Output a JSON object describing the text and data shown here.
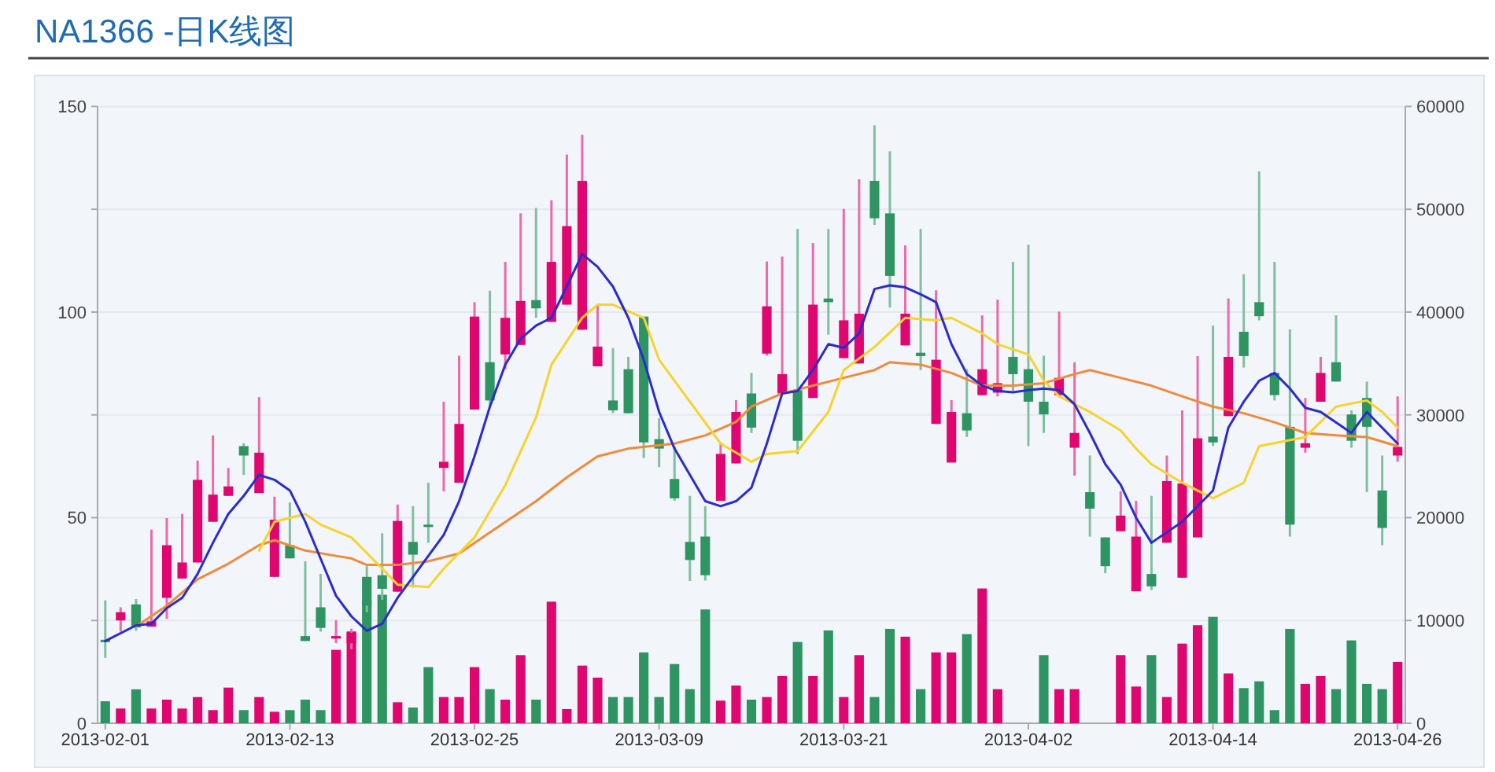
{
  "chart_data": {
    "type": "candlestick",
    "title": "NA1366 -日K线图",
    "x": [
      "2013-02-01",
      "2013-02-02",
      "2013-02-03",
      "2013-02-04",
      "2013-02-05",
      "2013-02-06",
      "2013-02-07",
      "2013-02-08",
      "2013-02-09",
      "2013-02-10",
      "2013-02-11",
      "2013-02-12",
      "2013-02-13",
      "2013-02-14",
      "2013-02-15",
      "2013-02-16",
      "2013-02-17",
      "2013-02-18",
      "2013-02-19",
      "2013-02-20",
      "2013-02-21",
      "2013-02-22",
      "2013-02-23",
      "2013-02-24",
      "2013-02-25",
      "2013-02-26",
      "2013-02-27",
      "2013-02-28",
      "2013-03-01",
      "2013-03-02",
      "2013-03-03",
      "2013-03-04",
      "2013-03-05",
      "2013-03-06",
      "2013-03-07",
      "2013-03-08",
      "2013-03-09",
      "2013-03-10",
      "2013-03-11",
      "2013-03-12",
      "2013-03-13",
      "2013-03-14",
      "2013-03-15",
      "2013-03-16",
      "2013-03-17",
      "2013-03-18",
      "2013-03-19",
      "2013-03-20",
      "2013-03-21",
      "2013-03-22",
      "2013-03-23",
      "2013-03-24",
      "2013-03-25",
      "2013-03-26",
      "2013-03-27",
      "2013-03-28",
      "2013-03-29",
      "2013-03-30",
      "2013-03-31",
      "2013-04-01",
      "2013-04-02",
      "2013-04-03",
      "2013-04-04",
      "2013-04-05",
      "2013-04-06",
      "2013-04-07",
      "2013-04-08",
      "2013-04-09",
      "2013-04-10",
      "2013-04-11",
      "2013-04-12",
      "2013-04-13",
      "2013-04-14",
      "2013-04-15",
      "2013-04-16",
      "2013-04-17",
      "2013-04-18",
      "2013-04-19",
      "2013-04-20",
      "2013-04-21",
      "2013-04-22",
      "2013-04-23",
      "2013-04-24",
      "2013-04-25",
      "2013-04-26"
    ],
    "ohlc": [
      [
        20.3,
        29.9,
        15.9,
        19.8
      ],
      [
        25,
        28.2,
        22.3,
        27
      ],
      [
        28.9,
        30.2,
        22.5,
        23.3
      ],
      [
        23.5,
        47.1,
        23.5,
        24.8
      ],
      [
        30.5,
        49.9,
        25.4,
        43.3
      ],
      [
        35.2,
        50.9,
        35.2,
        39.1
      ],
      [
        39.1,
        63.9,
        39.1,
        59.2
      ],
      [
        49,
        70,
        49,
        55.6
      ],
      [
        55.3,
        62.1,
        55.3,
        57.6
      ],
      [
        67.4,
        68.1,
        60.4,
        65.1
      ],
      [
        56,
        79.3,
        56,
        65.8
      ],
      [
        35.6,
        55.1,
        35.6,
        49.5
      ],
      [
        43.3,
        53.7,
        40.1,
        40.1
      ],
      [
        21.2,
        39.4,
        20,
        20
      ],
      [
        28.2,
        36.3,
        22.3,
        23.2
      ],
      [
        20.6,
        25.1,
        19.5,
        21.2
      ],
      [
        19.5,
        23,
        18,
        22
      ],
      [
        35.6,
        38.2,
        27,
        28.6
      ],
      [
        36,
        46.2,
        30,
        32.7
      ],
      [
        32,
        53.2,
        32,
        49.2
      ],
      [
        44.1,
        52.8,
        33,
        41
      ],
      [
        48.3,
        58.5,
        43.9,
        48
      ],
      [
        62.1,
        78.2,
        56.4,
        63.6
      ],
      [
        58.5,
        89.4,
        58.5,
        72.8
      ],
      [
        76.3,
        102.4,
        76.3,
        98.9
      ],
      [
        87.8,
        105.2,
        77,
        78.5
      ],
      [
        89.7,
        112.2,
        86.1,
        98.6
      ],
      [
        92,
        124,
        92,
        102.7
      ],
      [
        102.9,
        125.3,
        98.6,
        100.9
      ],
      [
        97.6,
        127.2,
        97.6,
        112.2
      ],
      [
        101.8,
        138.3,
        101.8,
        120.9
      ],
      [
        95.7,
        143.1,
        95.7,
        131.9
      ],
      [
        86.8,
        101.8,
        86.8,
        91.6
      ],
      [
        78.5,
        91.2,
        75.4,
        76.1
      ],
      [
        86.1,
        89.1,
        75.4,
        75.4
      ],
      [
        98.9,
        98.9,
        64.5,
        68.3
      ],
      [
        69.1,
        74.2,
        62.3,
        66.8
      ],
      [
        59.4,
        67.4,
        54.1,
        54.7
      ],
      [
        44.1,
        55.3,
        34.6,
        39.7
      ],
      [
        45.4,
        52.8,
        34.7,
        36
      ],
      [
        54.1,
        68.3,
        54.1,
        65.5
      ],
      [
        63.2,
        78.6,
        63.2,
        75.7
      ],
      [
        80.2,
        85.2,
        70.6,
        71.9
      ],
      [
        89.9,
        112.3,
        89.4,
        101.4
      ],
      [
        80.2,
        113.5,
        80.2,
        84.9
      ],
      [
        81,
        120.2,
        65.5,
        68.7
      ],
      [
        79.1,
        116.8,
        79.1,
        101.8
      ],
      [
        103.3,
        120.2,
        94.5,
        102.4
      ],
      [
        88.8,
        125.1,
        88.8,
        98
      ],
      [
        87.5,
        132.3,
        87.5,
        99.6
      ],
      [
        131.9,
        145.4,
        121.2,
        122.8
      ],
      [
        124,
        139.1,
        101.1,
        108.8
      ],
      [
        91.9,
        116.2,
        91.9,
        99.6
      ],
      [
        90.1,
        120.2,
        85.9,
        89.3
      ],
      [
        72.8,
        105.3,
        72.8,
        88.4
      ],
      [
        63.4,
        78.6,
        63.4,
        75.7
      ],
      [
        75.4,
        86.1,
        69.6,
        71.2
      ],
      [
        79.8,
        99.2,
        79.8,
        86.1
      ],
      [
        80.4,
        103,
        79.5,
        82.7
      ],
      [
        89.1,
        112.2,
        80.8,
        84.9
      ],
      [
        86.1,
        116.4,
        67.4,
        78.2
      ],
      [
        78.2,
        89.4,
        70.6,
        75.1
      ],
      [
        79.8,
        100.1,
        79.8,
        84
      ],
      [
        67,
        87.8,
        60.2,
        70.6
      ],
      [
        56.2,
        65.1,
        45.4,
        52.2
      ],
      [
        45.2,
        45.2,
        36.5,
        38.2
      ],
      [
        46.7,
        56.4,
        46.7,
        50.5
      ],
      [
        32.1,
        54.1,
        32.1,
        45.4
      ],
      [
        36.3,
        55.3,
        32.4,
        33.3
      ],
      [
        43.9,
        65.1,
        43.9,
        58.9
      ],
      [
        35.4,
        76.1,
        35.4,
        58.3
      ],
      [
        45.2,
        89.3,
        45.2,
        69.3
      ],
      [
        69.7,
        96.7,
        67.4,
        68.3
      ],
      [
        74.7,
        103.3,
        74.7,
        89.1
      ],
      [
        95.2,
        109.2,
        86.5,
        89.3
      ],
      [
        102.4,
        134.2,
        98,
        99
      ],
      [
        85.2,
        112.2,
        78.5,
        79.8
      ],
      [
        72.1,
        95.8,
        45.4,
        48.3
      ],
      [
        67,
        79.1,
        65.8,
        68.1
      ],
      [
        78.2,
        89.1,
        78.2,
        85.2
      ],
      [
        87.8,
        99.2,
        83.1,
        83.1
      ],
      [
        75.1,
        76.1,
        67,
        68.7
      ],
      [
        79.1,
        83.1,
        56.2,
        72.1
      ],
      [
        56.6,
        65.1,
        43.3,
        47.5
      ],
      [
        65.1,
        79.5,
        63.6,
        67.2
      ]
    ],
    "colors": [
      "#2e9461",
      "#e0066f",
      "#2e9461",
      "#e0066f",
      "#e0066f",
      "#e0066f",
      "#e0066f",
      "#e0066f",
      "#e0066f",
      "#2e9461",
      "#e0066f",
      "#e0066f",
      "#2e9461",
      "#2e9461",
      "#2e9461",
      "#e0066f",
      "#e0066f",
      "#2e9461",
      "#2e9461",
      "#e0066f",
      "#2e9461",
      "#2e9461",
      "#e0066f",
      "#e0066f",
      "#e0066f",
      "#2e9461",
      "#e0066f",
      "#e0066f",
      "#2e9461",
      "#e0066f",
      "#e0066f",
      "#e0066f",
      "#e0066f",
      "#2e9461",
      "#2e9461",
      "#2e9461",
      "#2e9461",
      "#2e9461",
      "#2e9461",
      "#2e9461",
      "#e0066f",
      "#e0066f",
      "#2e9461",
      "#e0066f",
      "#e0066f",
      "#2e9461",
      "#e0066f",
      "#2e9461",
      "#e0066f",
      "#e0066f",
      "#2e9461",
      "#2e9461",
      "#e0066f",
      "#2e9461",
      "#e0066f",
      "#e0066f",
      "#2e9461",
      "#e0066f",
      "#e0066f",
      "#2e9461",
      "#2e9461",
      "#2e9461",
      "#e0066f",
      "#e0066f",
      "#2e9461",
      "#2e9461",
      "#e0066f",
      "#e0066f",
      "#2e9461",
      "#e0066f",
      "#e0066f",
      "#e0066f",
      "#2e9461",
      "#e0066f",
      "#2e9461",
      "#2e9461",
      "#2e9461",
      "#2e9461",
      "#e0066f",
      "#e0066f",
      "#2e9461",
      "#2e9461",
      "#2e9461",
      "#2e9461",
      "#e0066f"
    ],
    "series": [
      {
        "type": "bar",
        "axis": "y2",
        "values": [
          2140,
          1430,
          3300,
          1430,
          2300,
          1430,
          2550,
          1280,
          3470,
          1280,
          2550,
          1120,
          1280,
          2300,
          1280,
          7140,
          8930,
          11990,
          12500,
          2040,
          1530,
          5460,
          2550,
          2550,
          5460,
          3320,
          2300,
          6630,
          2300,
          11830,
          1380,
          5610,
          4440,
          2550,
          2550,
          6890,
          2550,
          5760,
          3320,
          11070,
          2200,
          3670,
          2300,
          2550,
          4590,
          7910,
          4590,
          9030,
          2550,
          6630,
          2550,
          9180,
          8420,
          3320,
          6890,
          6890,
          8670,
          13110,
          3320,
          null,
          null,
          6630,
          3320,
          3320,
          null,
          null,
          6630,
          3570,
          6630,
          2550,
          7750,
          9540,
          10350,
          4850,
          3420,
          4080,
          1280,
          9180,
          3830,
          4590,
          3320,
          8060,
          3830,
          3320,
          5970
        ],
        "colors": [
          "#2e9461",
          "#e0066f",
          "#2e9461",
          "#e0066f",
          "#e0066f",
          "#e0066f",
          "#e0066f",
          "#e0066f",
          "#e0066f",
          "#2e9461",
          "#e0066f",
          "#e0066f",
          "#2e9461",
          "#2e9461",
          "#2e9461",
          "#e0066f",
          "#e0066f",
          "#2e9461",
          "#2e9461",
          "#e0066f",
          "#2e9461",
          "#2e9461",
          "#e0066f",
          "#e0066f",
          "#e0066f",
          "#2e9461",
          "#e0066f",
          "#e0066f",
          "#2e9461",
          "#e0066f",
          "#e0066f",
          "#e0066f",
          "#e0066f",
          "#2e9461",
          "#2e9461",
          "#2e9461",
          "#2e9461",
          "#2e9461",
          "#2e9461",
          "#2e9461",
          "#e0066f",
          "#e0066f",
          "#2e9461",
          "#e0066f",
          "#e0066f",
          "#2e9461",
          "#e0066f",
          "#2e9461",
          "#e0066f",
          "#e0066f",
          "#2e9461",
          "#2e9461",
          "#e0066f",
          "#2e9461",
          "#e0066f",
          "#e0066f",
          "#2e9461",
          "#e0066f",
          "#e0066f",
          null,
          null,
          "#2e9461",
          "#e0066f",
          "#e0066f",
          null,
          null,
          "#e0066f",
          "#e0066f",
          "#2e9461",
          "#e0066f",
          "#e0066f",
          "#e0066f",
          "#2e9461",
          "#e0066f",
          "#2e9461",
          "#2e9461",
          "#2e9461",
          "#2e9461",
          "#e0066f",
          "#e0066f",
          "#2e9461",
          "#2e9461",
          "#2e9461",
          "#2e9461",
          "#e0066f"
        ]
      },
      {
        "type": "line",
        "color": "#f08a3c",
        "x": [
          "2013-02-03",
          "2013-02-05",
          "2013-02-07",
          "2013-02-09",
          "2013-02-11",
          "2013-02-12",
          "2013-02-14",
          "2013-02-16",
          "2013-02-17",
          "2013-02-18",
          "2013-02-20",
          "2013-02-22",
          "2013-02-24",
          "2013-02-26",
          "2013-03-01",
          "2013-03-03",
          "2013-03-05",
          "2013-03-07",
          "2013-03-10",
          "2013-03-12",
          "2013-03-14",
          "2013-03-15",
          "2013-03-17",
          "2013-03-19",
          "2013-03-21",
          "2013-03-23",
          "2013-03-24",
          "2013-03-26",
          "2013-03-28",
          "2013-03-30",
          "2013-04-01",
          "2013-04-03",
          "2013-04-05",
          "2013-04-06",
          "2013-04-08",
          "2013-04-10",
          "2013-04-12",
          "2013-04-14",
          "2013-04-16",
          "2013-04-18",
          "2013-04-20",
          "2013-04-22",
          "2013-04-24",
          "2013-04-26"
        ],
        "values": [
          23.5,
          28.6,
          35,
          38.8,
          43.3,
          44.5,
          42,
          40.7,
          40.1,
          38.5,
          38.5,
          39.4,
          41.3,
          46.4,
          54,
          59.8,
          64.9,
          66.8,
          68,
          70,
          73.3,
          77,
          80.2,
          82.1,
          84,
          85.9,
          87.8,
          87.2,
          85.2,
          82.1,
          82.1,
          82.7,
          84.9,
          85.9,
          84,
          82.1,
          79.5,
          77,
          75.4,
          73.2,
          70.6,
          70,
          69.6,
          67.4
        ]
      },
      {
        "type": "line",
        "color": "#f7d42a",
        "x": [
          "2013-02-11",
          "2013-02-12",
          "2013-02-14",
          "2013-02-15",
          "2013-02-17",
          "2013-02-19",
          "2013-02-20",
          "2013-02-22",
          "2013-02-23",
          "2013-02-25",
          "2013-02-27",
          "2013-03-01",
          "2013-03-02",
          "2013-03-04",
          "2013-03-05",
          "2013-03-06",
          "2013-03-08",
          "2013-03-09",
          "2013-03-11",
          "2013-03-13",
          "2013-03-15",
          "2013-03-16",
          "2013-03-18",
          "2013-03-20",
          "2013-03-21",
          "2013-03-23",
          "2013-03-25",
          "2013-03-27",
          "2013-03-28",
          "2013-03-30",
          "2013-03-31",
          "2013-04-02",
          "2013-04-03",
          "2013-04-04",
          "2013-04-06",
          "2013-04-08",
          "2013-04-09",
          "2013-04-10",
          "2013-04-12",
          "2013-04-14",
          "2013-04-16",
          "2013-04-17",
          "2013-04-20",
          "2013-04-22",
          "2013-04-24",
          "2013-04-25",
          "2013-04-26"
        ],
        "values": [
          42,
          49,
          50.9,
          48.3,
          45.2,
          37.6,
          33.7,
          33.1,
          37.6,
          45.2,
          57.9,
          74.4,
          87.2,
          98.6,
          101.8,
          101.8,
          98.6,
          88.4,
          78.2,
          68,
          63.6,
          65.5,
          66.2,
          75.7,
          85.9,
          91.5,
          98.6,
          98,
          98.6,
          94.8,
          92.2,
          89.7,
          83.3,
          79.5,
          75.7,
          71.2,
          66.8,
          63,
          58.5,
          54.7,
          58.5,
          67.4,
          69.6,
          77,
          78.5,
          75.7,
          71.9
        ]
      },
      {
        "type": "line",
        "color": "#2b2bd0",
        "x": [
          "2013-02-01",
          "2013-02-03",
          "2013-02-04",
          "2013-02-05",
          "2013-02-06",
          "2013-02-07",
          "2013-02-08",
          "2013-02-09",
          "2013-02-10",
          "2013-02-11",
          "2013-02-12",
          "2013-02-13",
          "2013-02-14",
          "2013-02-15",
          "2013-02-16",
          "2013-02-17",
          "2013-02-18",
          "2013-02-19",
          "2013-02-20",
          "2013-02-21",
          "2013-02-22",
          "2013-02-23",
          "2013-02-24",
          "2013-02-25",
          "2013-02-26",
          "2013-02-27",
          "2013-02-28",
          "2013-03-01",
          "2013-03-02",
          "2013-03-03",
          "2013-03-04",
          "2013-03-05",
          "2013-03-06",
          "2013-03-07",
          "2013-03-08",
          "2013-03-09",
          "2013-03-10",
          "2013-03-11",
          "2013-03-12",
          "2013-03-13",
          "2013-03-14",
          "2013-03-15",
          "2013-03-16",
          "2013-03-17",
          "2013-03-18",
          "2013-03-19",
          "2013-03-20",
          "2013-03-21",
          "2013-03-22",
          "2013-03-23",
          "2013-03-24",
          "2013-03-25",
          "2013-03-26",
          "2013-03-27",
          "2013-03-28",
          "2013-03-29",
          "2013-03-30",
          "2013-03-31",
          "2013-04-01",
          "2013-04-02",
          "2013-04-03",
          "2013-04-04",
          "2013-04-05",
          "2013-04-06",
          "2013-04-07",
          "2013-04-08",
          "2013-04-09",
          "2013-04-10",
          "2013-04-12",
          "2013-04-14",
          "2013-04-15",
          "2013-04-16",
          "2013-04-17",
          "2013-04-18",
          "2013-04-19",
          "2013-04-20",
          "2013-04-21",
          "2013-04-23",
          "2013-04-24",
          "2013-04-26"
        ],
        "values": [
          20,
          23.8,
          24.2,
          28,
          30.5,
          36.3,
          43.9,
          50.9,
          55.3,
          60.4,
          59.2,
          56.6,
          49,
          40,
          31,
          26,
          22.5,
          24.2,
          30.5,
          35.6,
          40.7,
          45.8,
          54,
          64.9,
          77,
          87.2,
          93.5,
          96.7,
          98.6,
          106.2,
          114.1,
          111,
          106.2,
          98.6,
          88.4,
          75.7,
          66.8,
          60.4,
          54,
          52.8,
          54,
          57.3,
          68,
          80.2,
          80.8,
          85.9,
          92.2,
          91.3,
          94.8,
          105.6,
          106.5,
          106,
          104.3,
          102.4,
          92.2,
          84.9,
          82.1,
          80.8,
          80.5,
          81,
          81.4,
          81,
          77.6,
          70.6,
          63,
          58,
          50,
          43.9,
          49,
          56.6,
          71.9,
          78.2,
          83.3,
          85.2,
          81.4,
          76.7,
          75.7,
          70.6,
          75.7,
          68
        ]
      }
    ],
    "xlim": [
      "2013-01-31T12:00",
      "2013-04-26T12:00"
    ],
    "xticks": [
      "2013-02-01",
      "2013-02-13",
      "2013-02-25",
      "2013-03-09",
      "2013-03-21",
      "2013-04-02",
      "2013-04-14",
      "2013-04-26"
    ],
    "ylim": [
      0,
      150
    ],
    "yticks": [
      0,
      {
        "value": 25,
        "label": null
      },
      50,
      {
        "value": 75,
        "label": null
      },
      100,
      {
        "value": 125,
        "label": null
      },
      150
    ],
    "y2lim": [
      0,
      60000
    ],
    "y2ticks": [
      0,
      10000,
      20000,
      30000,
      40000,
      50000,
      60000
    ],
    "grid": "y"
  }
}
